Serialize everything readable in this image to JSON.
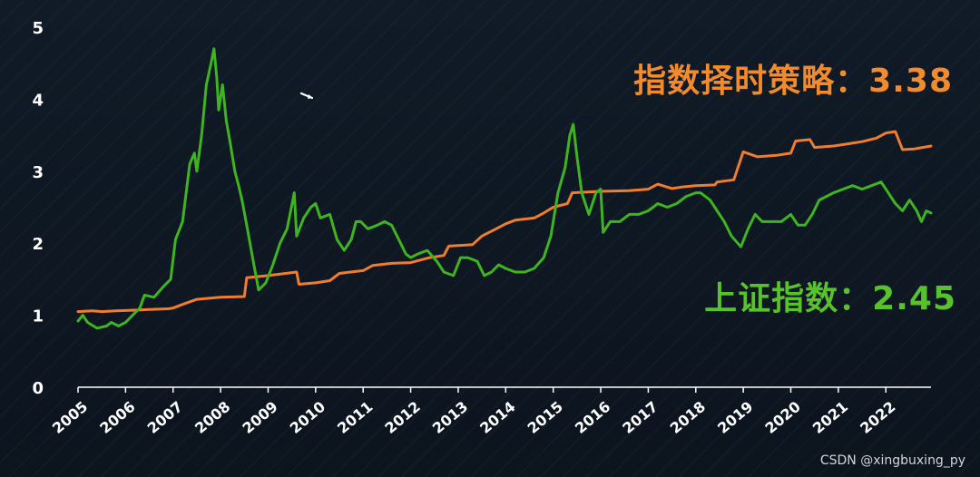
{
  "labels": {
    "strategy": "指数择时策略：3.38",
    "index": "上证指数：2.45",
    "watermark": "CSDN @xingbuxing_py"
  },
  "colors": {
    "strategy": "#f07c2e",
    "index": "#3fb320",
    "axis": "#ffffff"
  },
  "chart_data": {
    "type": "line",
    "title": "",
    "xlabel": "",
    "ylabel": "",
    "ylim": [
      0,
      5
    ],
    "yticks": [
      "0",
      "1",
      "2",
      "3",
      "4",
      "5"
    ],
    "xlim": [
      2005.0,
      2022.95
    ],
    "xticks": [
      "2005",
      "2006",
      "2007",
      "2008",
      "2009",
      "2010",
      "2011",
      "2012",
      "2013",
      "2014",
      "2015",
      "2016",
      "2017",
      "2018",
      "2019",
      "2020",
      "2021",
      "2022"
    ],
    "grid": false,
    "series": [
      {
        "name": "指数择时策略",
        "color": "#f07c2e",
        "points": [
          [
            2005.0,
            1.05
          ],
          [
            2005.3,
            1.06
          ],
          [
            2005.5,
            1.05
          ],
          [
            2005.8,
            1.06
          ],
          [
            2006.2,
            1.07
          ],
          [
            2006.5,
            1.08
          ],
          [
            2006.9,
            1.09
          ],
          [
            2007.0,
            1.1
          ],
          [
            2007.2,
            1.15
          ],
          [
            2007.5,
            1.22
          ],
          [
            2008.0,
            1.25
          ],
          [
            2008.5,
            1.26
          ],
          [
            2008.55,
            1.52
          ],
          [
            2009.0,
            1.55
          ],
          [
            2009.6,
            1.6
          ],
          [
            2009.65,
            1.43
          ],
          [
            2010.0,
            1.45
          ],
          [
            2010.3,
            1.48
          ],
          [
            2010.5,
            1.58
          ],
          [
            2011.0,
            1.62
          ],
          [
            2011.2,
            1.69
          ],
          [
            2011.6,
            1.72
          ],
          [
            2012.0,
            1.73
          ],
          [
            2012.4,
            1.8
          ],
          [
            2012.7,
            1.83
          ],
          [
            2012.8,
            1.96
          ],
          [
            2013.3,
            1.98
          ],
          [
            2013.5,
            2.1
          ],
          [
            2013.8,
            2.2
          ],
          [
            2014.0,
            2.27
          ],
          [
            2014.2,
            2.32
          ],
          [
            2014.6,
            2.35
          ],
          [
            2014.8,
            2.42
          ],
          [
            2015.0,
            2.5
          ],
          [
            2015.3,
            2.55
          ],
          [
            2015.4,
            2.7
          ],
          [
            2016.0,
            2.72
          ],
          [
            2016.6,
            2.73
          ],
          [
            2017.0,
            2.75
          ],
          [
            2017.2,
            2.82
          ],
          [
            2017.5,
            2.76
          ],
          [
            2017.7,
            2.78
          ],
          [
            2018.0,
            2.8
          ],
          [
            2018.4,
            2.81
          ],
          [
            2018.45,
            2.85
          ],
          [
            2018.8,
            2.88
          ],
          [
            2019.0,
            3.27
          ],
          [
            2019.3,
            3.2
          ],
          [
            2019.7,
            3.22
          ],
          [
            2020.0,
            3.25
          ],
          [
            2020.1,
            3.42
          ],
          [
            2020.4,
            3.44
          ],
          [
            2020.5,
            3.33
          ],
          [
            2020.9,
            3.35
          ],
          [
            2021.2,
            3.38
          ],
          [
            2021.5,
            3.41
          ],
          [
            2021.8,
            3.46
          ],
          [
            2022.0,
            3.53
          ],
          [
            2022.2,
            3.55
          ],
          [
            2022.35,
            3.3
          ],
          [
            2022.6,
            3.31
          ],
          [
            2022.95,
            3.35
          ]
        ]
      },
      {
        "name": "上证指数",
        "color": "#3fb320",
        "points": [
          [
            2005.0,
            0.92
          ],
          [
            2005.1,
            1.0
          ],
          [
            2005.2,
            0.9
          ],
          [
            2005.4,
            0.82
          ],
          [
            2005.6,
            0.85
          ],
          [
            2005.7,
            0.9
          ],
          [
            2005.85,
            0.85
          ],
          [
            2006.0,
            0.9
          ],
          [
            2006.15,
            1.0
          ],
          [
            2006.3,
            1.1
          ],
          [
            2006.4,
            1.28
          ],
          [
            2006.6,
            1.25
          ],
          [
            2006.8,
            1.4
          ],
          [
            2006.95,
            1.5
          ],
          [
            2007.05,
            2.05
          ],
          [
            2007.2,
            2.3
          ],
          [
            2007.35,
            3.1
          ],
          [
            2007.45,
            3.25
          ],
          [
            2007.5,
            3.0
          ],
          [
            2007.6,
            3.5
          ],
          [
            2007.7,
            4.2
          ],
          [
            2007.8,
            4.5
          ],
          [
            2007.86,
            4.7
          ],
          [
            2007.92,
            4.3
          ],
          [
            2007.96,
            3.85
          ],
          [
            2008.04,
            4.2
          ],
          [
            2008.12,
            3.7
          ],
          [
            2008.2,
            3.4
          ],
          [
            2008.3,
            3.0
          ],
          [
            2008.38,
            2.8
          ],
          [
            2008.45,
            2.6
          ],
          [
            2008.55,
            2.25
          ],
          [
            2008.7,
            1.7
          ],
          [
            2008.8,
            1.35
          ],
          [
            2008.95,
            1.45
          ],
          [
            2009.1,
            1.7
          ],
          [
            2009.25,
            2.0
          ],
          [
            2009.4,
            2.2
          ],
          [
            2009.55,
            2.7
          ],
          [
            2009.6,
            2.1
          ],
          [
            2009.75,
            2.35
          ],
          [
            2009.9,
            2.5
          ],
          [
            2010.0,
            2.55
          ],
          [
            2010.1,
            2.35
          ],
          [
            2010.3,
            2.4
          ],
          [
            2010.45,
            2.05
          ],
          [
            2010.6,
            1.9
          ],
          [
            2010.75,
            2.05
          ],
          [
            2010.85,
            2.3
          ],
          [
            2010.95,
            2.3
          ],
          [
            2011.1,
            2.2
          ],
          [
            2011.3,
            2.25
          ],
          [
            2011.45,
            2.3
          ],
          [
            2011.6,
            2.25
          ],
          [
            2011.75,
            2.05
          ],
          [
            2011.9,
            1.85
          ],
          [
            2012.0,
            1.8
          ],
          [
            2012.15,
            1.85
          ],
          [
            2012.35,
            1.9
          ],
          [
            2012.55,
            1.75
          ],
          [
            2012.7,
            1.6
          ],
          [
            2012.9,
            1.55
          ],
          [
            2013.05,
            1.8
          ],
          [
            2013.2,
            1.8
          ],
          [
            2013.4,
            1.75
          ],
          [
            2013.55,
            1.55
          ],
          [
            2013.7,
            1.6
          ],
          [
            2013.85,
            1.7
          ],
          [
            2014.0,
            1.65
          ],
          [
            2014.2,
            1.6
          ],
          [
            2014.4,
            1.6
          ],
          [
            2014.6,
            1.65
          ],
          [
            2014.8,
            1.8
          ],
          [
            2014.95,
            2.1
          ],
          [
            2015.1,
            2.7
          ],
          [
            2015.25,
            3.05
          ],
          [
            2015.35,
            3.5
          ],
          [
            2015.42,
            3.65
          ],
          [
            2015.5,
            3.2
          ],
          [
            2015.6,
            2.7
          ],
          [
            2015.75,
            2.4
          ],
          [
            2015.9,
            2.7
          ],
          [
            2016.0,
            2.75
          ],
          [
            2016.05,
            2.15
          ],
          [
            2016.2,
            2.3
          ],
          [
            2016.4,
            2.3
          ],
          [
            2016.6,
            2.4
          ],
          [
            2016.8,
            2.4
          ],
          [
            2017.0,
            2.45
          ],
          [
            2017.2,
            2.55
          ],
          [
            2017.4,
            2.5
          ],
          [
            2017.6,
            2.55
          ],
          [
            2017.8,
            2.65
          ],
          [
            2018.0,
            2.7
          ],
          [
            2018.1,
            2.7
          ],
          [
            2018.3,
            2.6
          ],
          [
            2018.45,
            2.45
          ],
          [
            2018.6,
            2.3
          ],
          [
            2018.75,
            2.1
          ],
          [
            2018.95,
            1.95
          ],
          [
            2019.1,
            2.2
          ],
          [
            2019.25,
            2.4
          ],
          [
            2019.4,
            2.3
          ],
          [
            2019.6,
            2.3
          ],
          [
            2019.8,
            2.3
          ],
          [
            2020.0,
            2.4
          ],
          [
            2020.15,
            2.25
          ],
          [
            2020.3,
            2.25
          ],
          [
            2020.45,
            2.4
          ],
          [
            2020.6,
            2.6
          ],
          [
            2020.75,
            2.65
          ],
          [
            2020.9,
            2.7
          ],
          [
            2021.1,
            2.75
          ],
          [
            2021.3,
            2.8
          ],
          [
            2021.5,
            2.75
          ],
          [
            2021.7,
            2.8
          ],
          [
            2021.9,
            2.85
          ],
          [
            2022.05,
            2.7
          ],
          [
            2022.2,
            2.55
          ],
          [
            2022.35,
            2.45
          ],
          [
            2022.5,
            2.6
          ],
          [
            2022.65,
            2.45
          ],
          [
            2022.75,
            2.3
          ],
          [
            2022.85,
            2.45
          ],
          [
            2022.95,
            2.42
          ]
        ]
      }
    ]
  }
}
